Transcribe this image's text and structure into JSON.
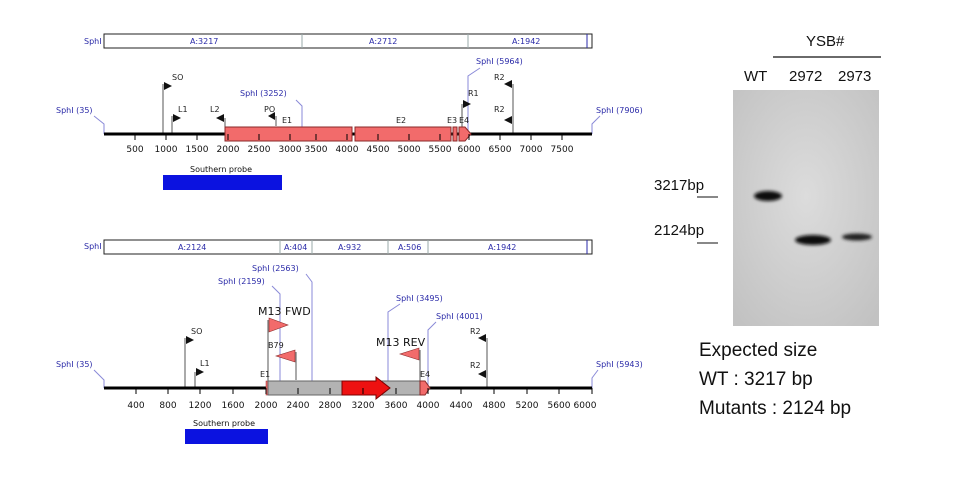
{
  "map1": {
    "fragment_bar": {
      "enzyme": "SphI",
      "fragments": [
        "A:3217",
        "A:2712",
        "A:1942"
      ]
    },
    "sites": {
      "left": "SphI (35)",
      "middle": "SphI (3252)",
      "upper_right": "SphI (5964)",
      "right": "SphI (7906)"
    },
    "features": {
      "so": "SO",
      "l1": "L1",
      "l2": "L2",
      "po": "PO",
      "e1": "E1",
      "e2": "E2",
      "e3": "E3",
      "e4": "E4",
      "r1": "R1",
      "r2_top": "R2",
      "r2_mid": "R2"
    },
    "axis_ticks": [
      "500",
      "1000",
      "1500",
      "2000",
      "2500",
      "3000",
      "3500",
      "4000",
      "4500",
      "5000",
      "5500",
      "6000",
      "6500",
      "7000",
      "7500"
    ],
    "probe_label": "Southern probe"
  },
  "map2": {
    "fragment_bar": {
      "enzyme": "SphI",
      "fragments": [
        "A:2124",
        "A:404",
        "A:932",
        "A:506",
        "A:1942"
      ]
    },
    "sites": {
      "left": "SphI (35)",
      "s2159": "SphI (2159)",
      "s2563": "SphI (2563)",
      "s3495": "SphI (3495)",
      "s4001": "SphI (4001)",
      "right": "SphI (5943)"
    },
    "features": {
      "m13fwd": "M13 FWD",
      "m13rev": "M13 REV",
      "b79": "B79",
      "so": "SO",
      "l1": "L1",
      "e1": "E1",
      "e4": "E4",
      "r2_top": "R2",
      "r2_mid": "R2"
    },
    "axis_ticks": [
      "400",
      "800",
      "1200",
      "1600",
      "2000",
      "2400",
      "2800",
      "3200",
      "3600",
      "4000",
      "4400",
      "4800",
      "5200",
      "5600",
      "6000"
    ],
    "probe_label": "Southern probe"
  },
  "gel": {
    "group_label": "YSB#",
    "lanes": [
      "WT",
      "2972",
      "2973"
    ],
    "markers": [
      "3217bp",
      "2124bp"
    ]
  },
  "expected": {
    "title": "Expected size",
    "wt": "WT : 3217 bp",
    "mutants": "Mutants : 2124 bp"
  },
  "colors": {
    "site_blue": "#2a2aa8",
    "feature_salmon": "#f26b6b",
    "insert_red": "#ee1111",
    "probe_blue": "#0b12e0",
    "gray_cassette": "#b3b3b3",
    "gel_background": "#cfcfcf"
  }
}
